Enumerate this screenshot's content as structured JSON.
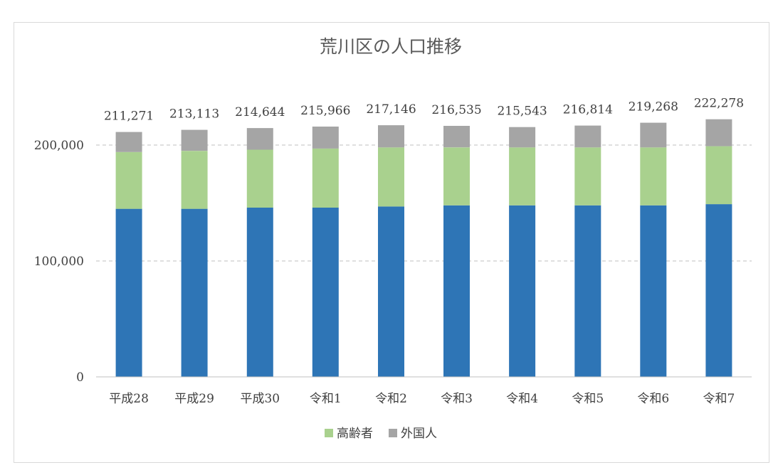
{
  "chart_data": {
    "type": "bar",
    "stacked": true,
    "title": "荒川区の人口推移",
    "categories": [
      "平成28",
      "平成29",
      "平成30",
      "令和1",
      "令和2",
      "令和3",
      "令和4",
      "令和5",
      "令和6",
      "令和7"
    ],
    "totals": [
      211271,
      213113,
      214644,
      215966,
      217146,
      216535,
      215543,
      216814,
      219268,
      222278
    ],
    "total_labels": [
      "211,271",
      "213,113",
      "214,644",
      "215,966",
      "217,146",
      "216,535",
      "215,543",
      "216,814",
      "219,268",
      "222,278"
    ],
    "series": [
      {
        "values": [
          145000,
          145000,
          146000,
          146000,
          147000,
          148000,
          148000,
          148000,
          148000,
          149000
        ],
        "color": "#2e75b6"
      },
      {
        "name": "高齢者",
        "values": [
          49000,
          50000,
          50000,
          51000,
          51000,
          50000,
          50000,
          50000,
          50000,
          50000
        ],
        "color": "#a9d18e"
      },
      {
        "name": "外国人",
        "values": [
          17271,
          18113,
          18644,
          18966,
          19146,
          18535,
          17543,
          18814,
          21268,
          23278
        ],
        "color": "#a5a5a5"
      }
    ],
    "yticks": [
      "0",
      "100,000",
      "200,000"
    ],
    "ytick_values": [
      0,
      100000,
      200000
    ],
    "ylim": [
      0,
      200000
    ],
    "grid": true,
    "legend_position": "bottom"
  }
}
